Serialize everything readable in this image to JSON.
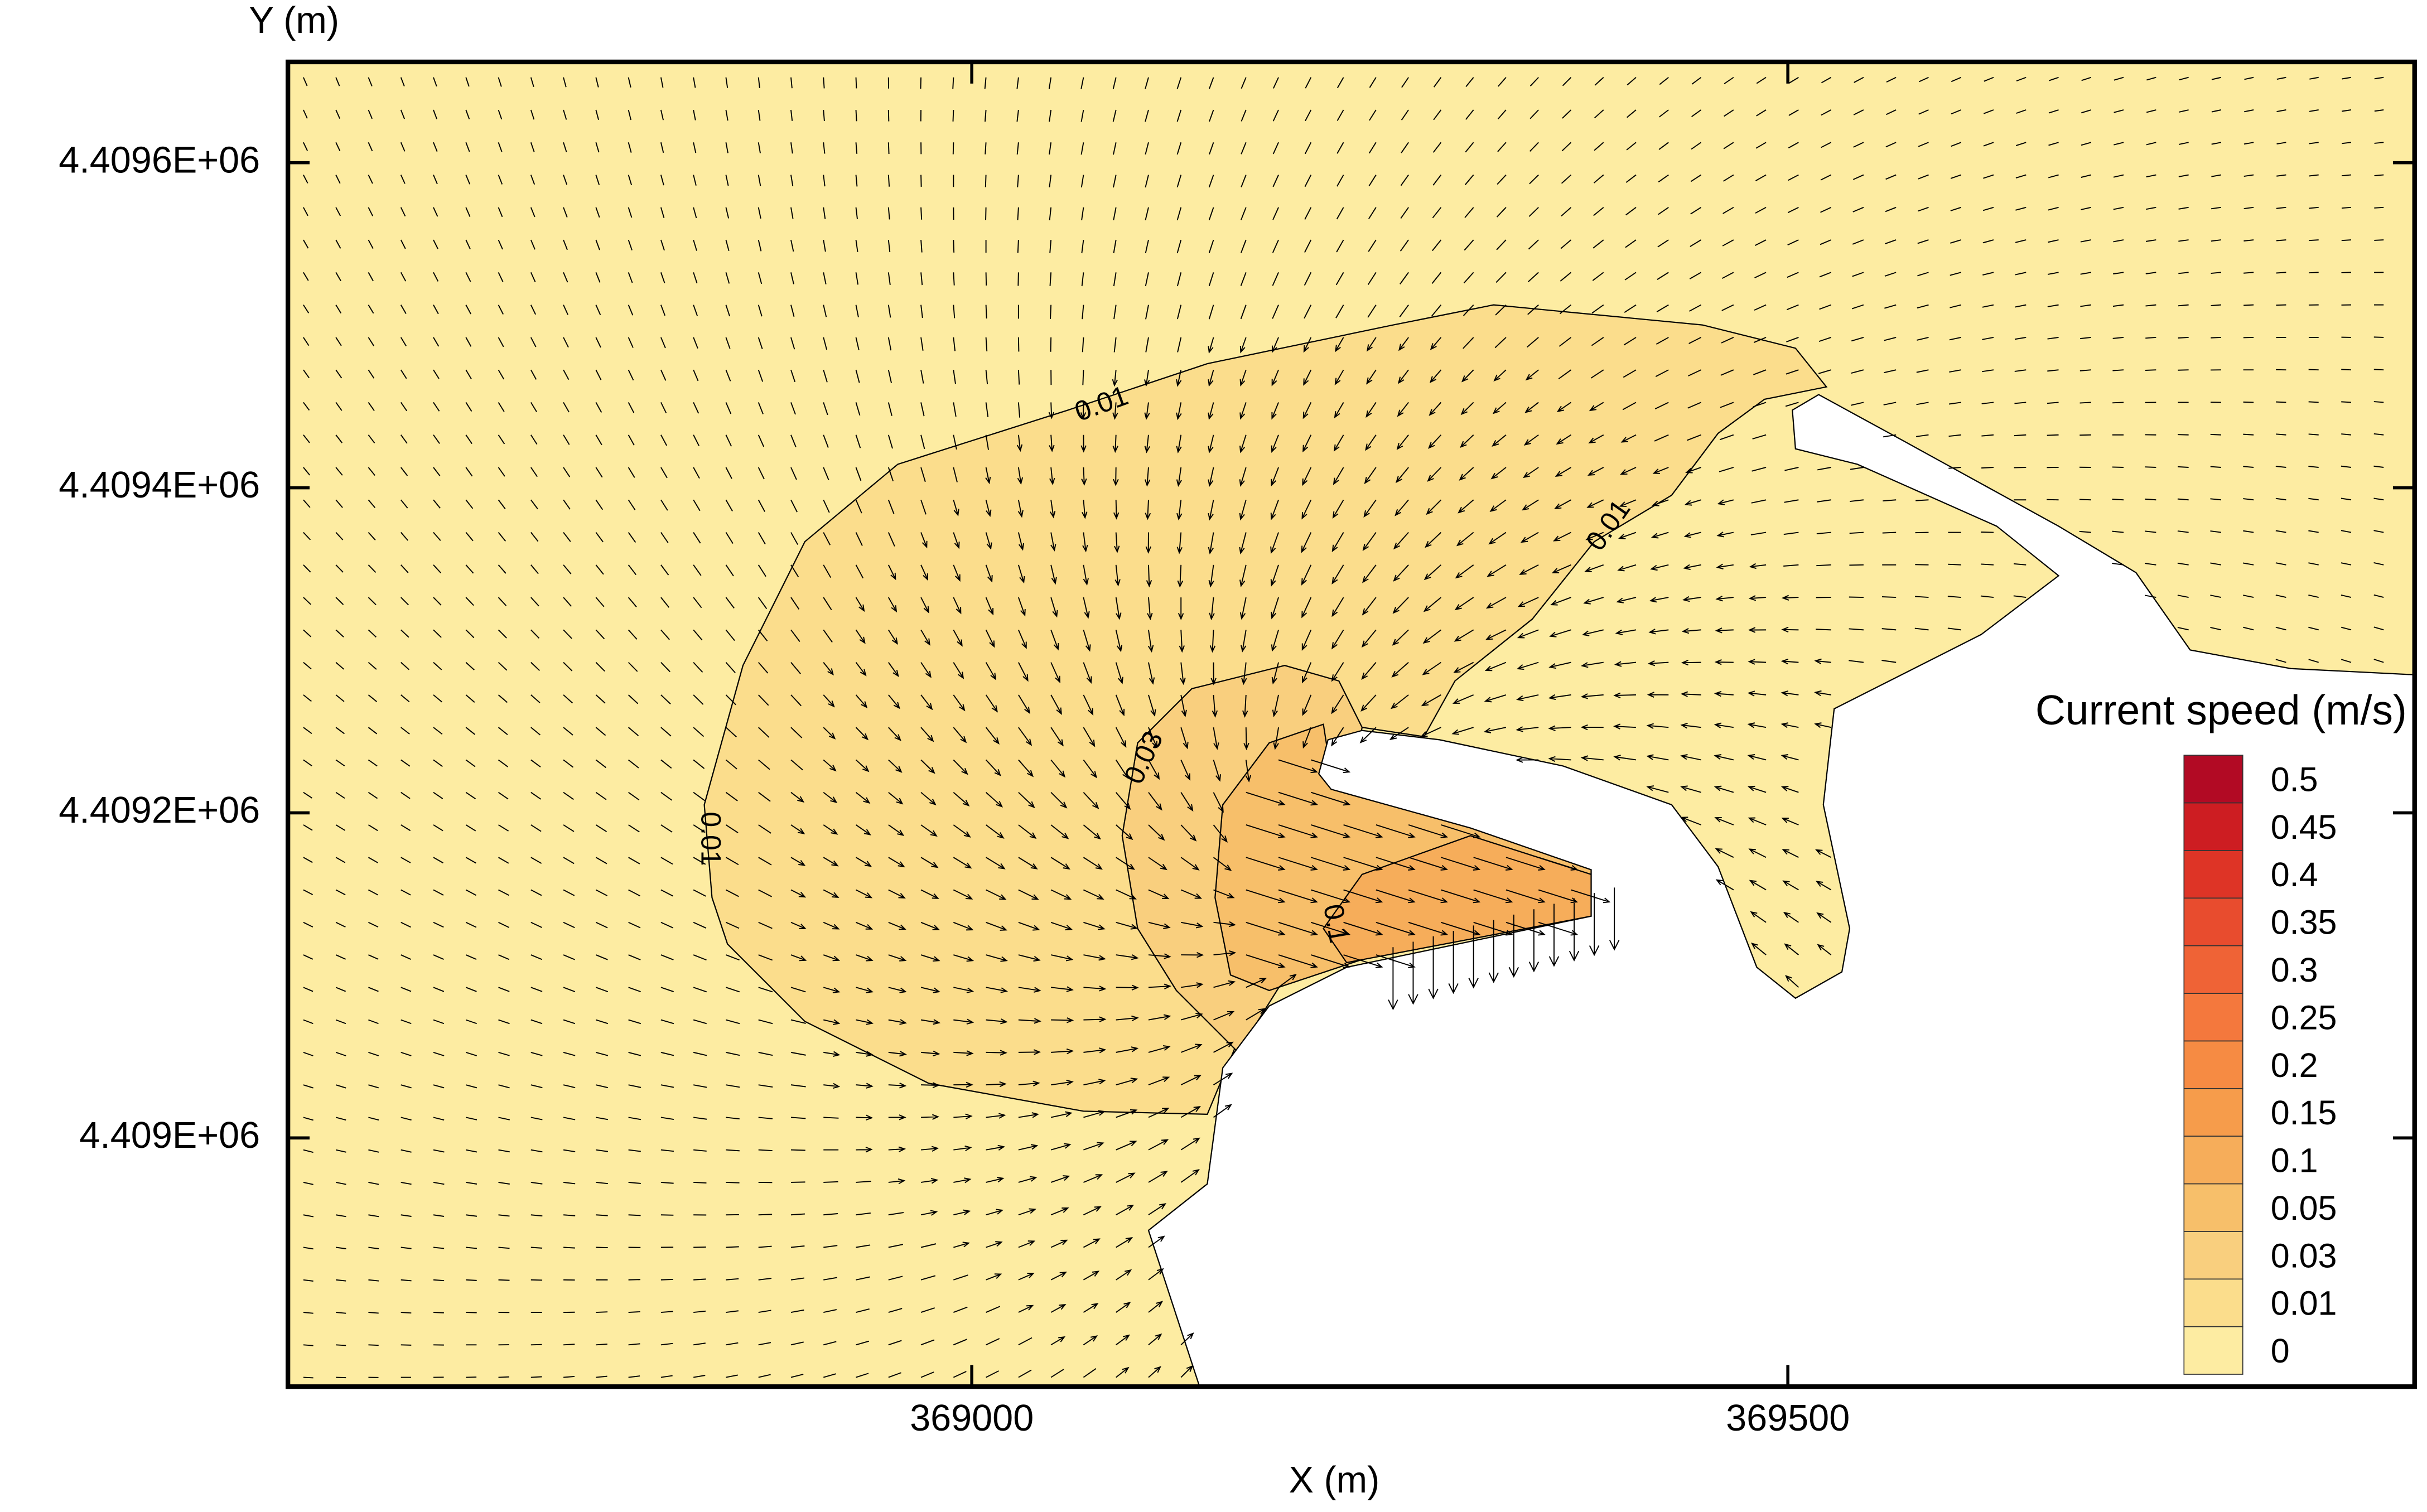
{
  "chart_data": {
    "type": "contour",
    "xlabel": "X (m)",
    "ylabel": "Y (m)",
    "xlim": [
      368581,
      369884
    ],
    "ylim": [
      4408847,
      4409662
    ],
    "xticks": [
      369000,
      369500
    ],
    "yticks": [
      {
        "value": 4409000,
        "label": "4.409E+06"
      },
      {
        "value": 4409200,
        "label": "4.4092E+06"
      },
      {
        "value": 4409400,
        "label": "4.4094E+06"
      },
      {
        "value": 4409600,
        "label": "4.4096E+06"
      }
    ],
    "colorbar": {
      "title": "Current speed (m/s)",
      "levels": [
        0,
        0.01,
        0.03,
        0.05,
        0.1,
        0.15,
        0.2,
        0.25,
        0.3,
        0.35,
        0.4,
        0.45,
        0.5
      ],
      "colors": [
        "#fdeca2",
        "#fbdd8c",
        "#f9cf7e",
        "#f7bf6a",
        "#f6ad5a",
        "#f69c4b",
        "#f68b43",
        "#f4783d",
        "#ef6336",
        "#e84c2e",
        "#de3426",
        "#cd1d22",
        "#b20a24"
      ]
    },
    "contour_labels": [
      "0.01",
      "0.01",
      "0.01",
      "0.03",
      "0.1"
    ]
  }
}
